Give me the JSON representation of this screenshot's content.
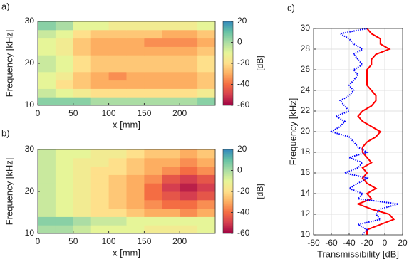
{
  "chart_data": [
    {
      "type": "heatmap",
      "label": "a)",
      "xlabel": "x [mm]",
      "ylabel": "Frequency [kHz]",
      "colorbar_label": "[dB]",
      "xlim": [
        0,
        250
      ],
      "xticks": [
        0,
        50,
        100,
        150,
        200
      ],
      "ylim": [
        10,
        30
      ],
      "yticks": [
        10,
        20,
        30
      ],
      "zlim": [
        -60,
        20
      ],
      "colorbar_ticks": [
        20,
        0,
        -20,
        -40,
        -60
      ],
      "colorscale": [
        "#9e0142",
        "#d53e4f",
        "#f46d43",
        "#fdae61",
        "#fee08b",
        "#e6f598",
        "#abdda4",
        "#66c2a5",
        "#3288bd"
      ],
      "x": [
        12.5,
        37.5,
        62.5,
        87.5,
        112.5,
        137.5,
        162.5,
        187.5,
        212.5,
        237.5
      ],
      "y": [
        11,
        13,
        15,
        17,
        19,
        21,
        23,
        25,
        27,
        29
      ],
      "z": [
        [
          5,
          5,
          5,
          0,
          0,
          0,
          0,
          0,
          0,
          5
        ],
        [
          -5,
          -10,
          -15,
          -20,
          -20,
          -20,
          -20,
          -20,
          -20,
          -15
        ],
        [
          -10,
          -20,
          -25,
          -30,
          -30,
          -30,
          -30,
          -30,
          -30,
          -25
        ],
        [
          -10,
          -15,
          -25,
          -30,
          -35,
          -30,
          -30,
          -30,
          -30,
          -25
        ],
        [
          -5,
          -10,
          -20,
          -25,
          -25,
          -25,
          -25,
          -25,
          -25,
          -20
        ],
        [
          -5,
          -10,
          -20,
          -25,
          -25,
          -25,
          -25,
          -25,
          -25,
          -20
        ],
        [
          -10,
          -15,
          -25,
          -30,
          -30,
          -30,
          -30,
          -30,
          -30,
          -25
        ],
        [
          -10,
          -15,
          -25,
          -30,
          -30,
          -30,
          -35,
          -35,
          -35,
          -30
        ],
        [
          -5,
          -10,
          -20,
          -25,
          -25,
          -25,
          -25,
          -30,
          -30,
          -25
        ],
        [
          5,
          0,
          -10,
          -10,
          -15,
          -15,
          -15,
          -15,
          -15,
          -10
        ]
      ]
    },
    {
      "type": "heatmap",
      "label": "b)",
      "xlabel": "x [mm]",
      "ylabel": "Frequency [kHz]",
      "colorbar_label": "[dB]",
      "xlim": [
        0,
        250
      ],
      "xticks": [
        0,
        50,
        100,
        150,
        200
      ],
      "ylim": [
        10,
        30
      ],
      "yticks": [
        10,
        20,
        30
      ],
      "zlim": [
        -60,
        20
      ],
      "colorbar_ticks": [
        20,
        0,
        -20,
        -40,
        -60
      ],
      "colorscale": [
        "#9e0142",
        "#d53e4f",
        "#f46d43",
        "#fdae61",
        "#fee08b",
        "#e6f598",
        "#abdda4",
        "#66c2a5",
        "#3288bd"
      ],
      "x": [
        12.5,
        37.5,
        62.5,
        87.5,
        112.5,
        137.5,
        162.5,
        187.5,
        212.5,
        237.5
      ],
      "y": [
        11,
        13,
        15,
        17,
        19,
        21,
        23,
        25,
        27,
        29
      ],
      "z": [
        [
          0,
          0,
          -5,
          -10,
          -10,
          -10,
          -15,
          -15,
          -15,
          -10
        ],
        [
          5,
          5,
          0,
          -5,
          -5,
          -10,
          -10,
          -10,
          -10,
          -10
        ],
        [
          -5,
          -10,
          -15,
          -20,
          -20,
          -25,
          -30,
          -30,
          -35,
          -30
        ],
        [
          -5,
          -10,
          -15,
          -20,
          -25,
          -30,
          -35,
          -40,
          -40,
          -35
        ],
        [
          -5,
          -10,
          -15,
          -20,
          -25,
          -30,
          -40,
          -45,
          -50,
          -45
        ],
        [
          -5,
          -10,
          -15,
          -20,
          -25,
          -30,
          -40,
          -50,
          -55,
          -50
        ],
        [
          -5,
          -10,
          -15,
          -20,
          -25,
          -30,
          -35,
          -45,
          -50,
          -45
        ],
        [
          -5,
          -10,
          -15,
          -20,
          -20,
          -25,
          -30,
          -35,
          -40,
          -35
        ],
        [
          -5,
          -10,
          -15,
          -15,
          -20,
          -25,
          -30,
          -30,
          -35,
          -30
        ],
        [
          -5,
          -10,
          -10,
          -15,
          -15,
          -20,
          -25,
          -25,
          -30,
          -25
        ]
      ]
    },
    {
      "type": "line",
      "label": "c)",
      "xlabel": "Transmissibility [dB]",
      "ylabel": "Frequency [kHz]",
      "xlim": [
        -80,
        20
      ],
      "xticks": [
        -80,
        -60,
        -40,
        -20,
        0,
        20
      ],
      "ylim": [
        10,
        30
      ],
      "yticks": [
        10,
        12,
        14,
        16,
        18,
        20,
        22,
        24,
        26,
        28,
        30
      ],
      "grid": true,
      "y": [
        10,
        10.5,
        11,
        11.5,
        12,
        12.5,
        13,
        13.5,
        14,
        14.5,
        15,
        15.5,
        16,
        16.5,
        17,
        17.5,
        18,
        18.5,
        19,
        19.5,
        20,
        20.5,
        21,
        21.5,
        22,
        22.5,
        23,
        23.5,
        24,
        24.5,
        25,
        25.5,
        26,
        26.5,
        27,
        27.5,
        28,
        28.5,
        29,
        29.5,
        30
      ],
      "series": [
        {
          "color": "#ff0000",
          "style": "solid",
          "values": [
            -20,
            -20,
            -5,
            10,
            5,
            -15,
            -30,
            -15,
            -20,
            -10,
            -20,
            -25,
            -20,
            -25,
            -15,
            -20,
            -25,
            -25,
            -20,
            -10,
            -5,
            -15,
            -25,
            -30,
            -25,
            -15,
            -10,
            -10,
            -15,
            -20,
            -20,
            -20,
            -20,
            -15,
            -15,
            -10,
            5,
            -5,
            -5,
            -15,
            -20
          ]
        },
        {
          "color": "#0000ff",
          "style": "dotted",
          "values": [
            -25,
            -20,
            -30,
            -5,
            -10,
            -5,
            15,
            -30,
            -25,
            -40,
            -30,
            -20,
            -45,
            -30,
            -25,
            -40,
            -20,
            -30,
            -35,
            -40,
            -60,
            -50,
            -45,
            -55,
            -40,
            -45,
            -50,
            -40,
            -35,
            -40,
            -35,
            -30,
            -35,
            -25,
            -30,
            -35,
            -25,
            -35,
            -40,
            -50,
            -20
          ]
        }
      ]
    }
  ]
}
